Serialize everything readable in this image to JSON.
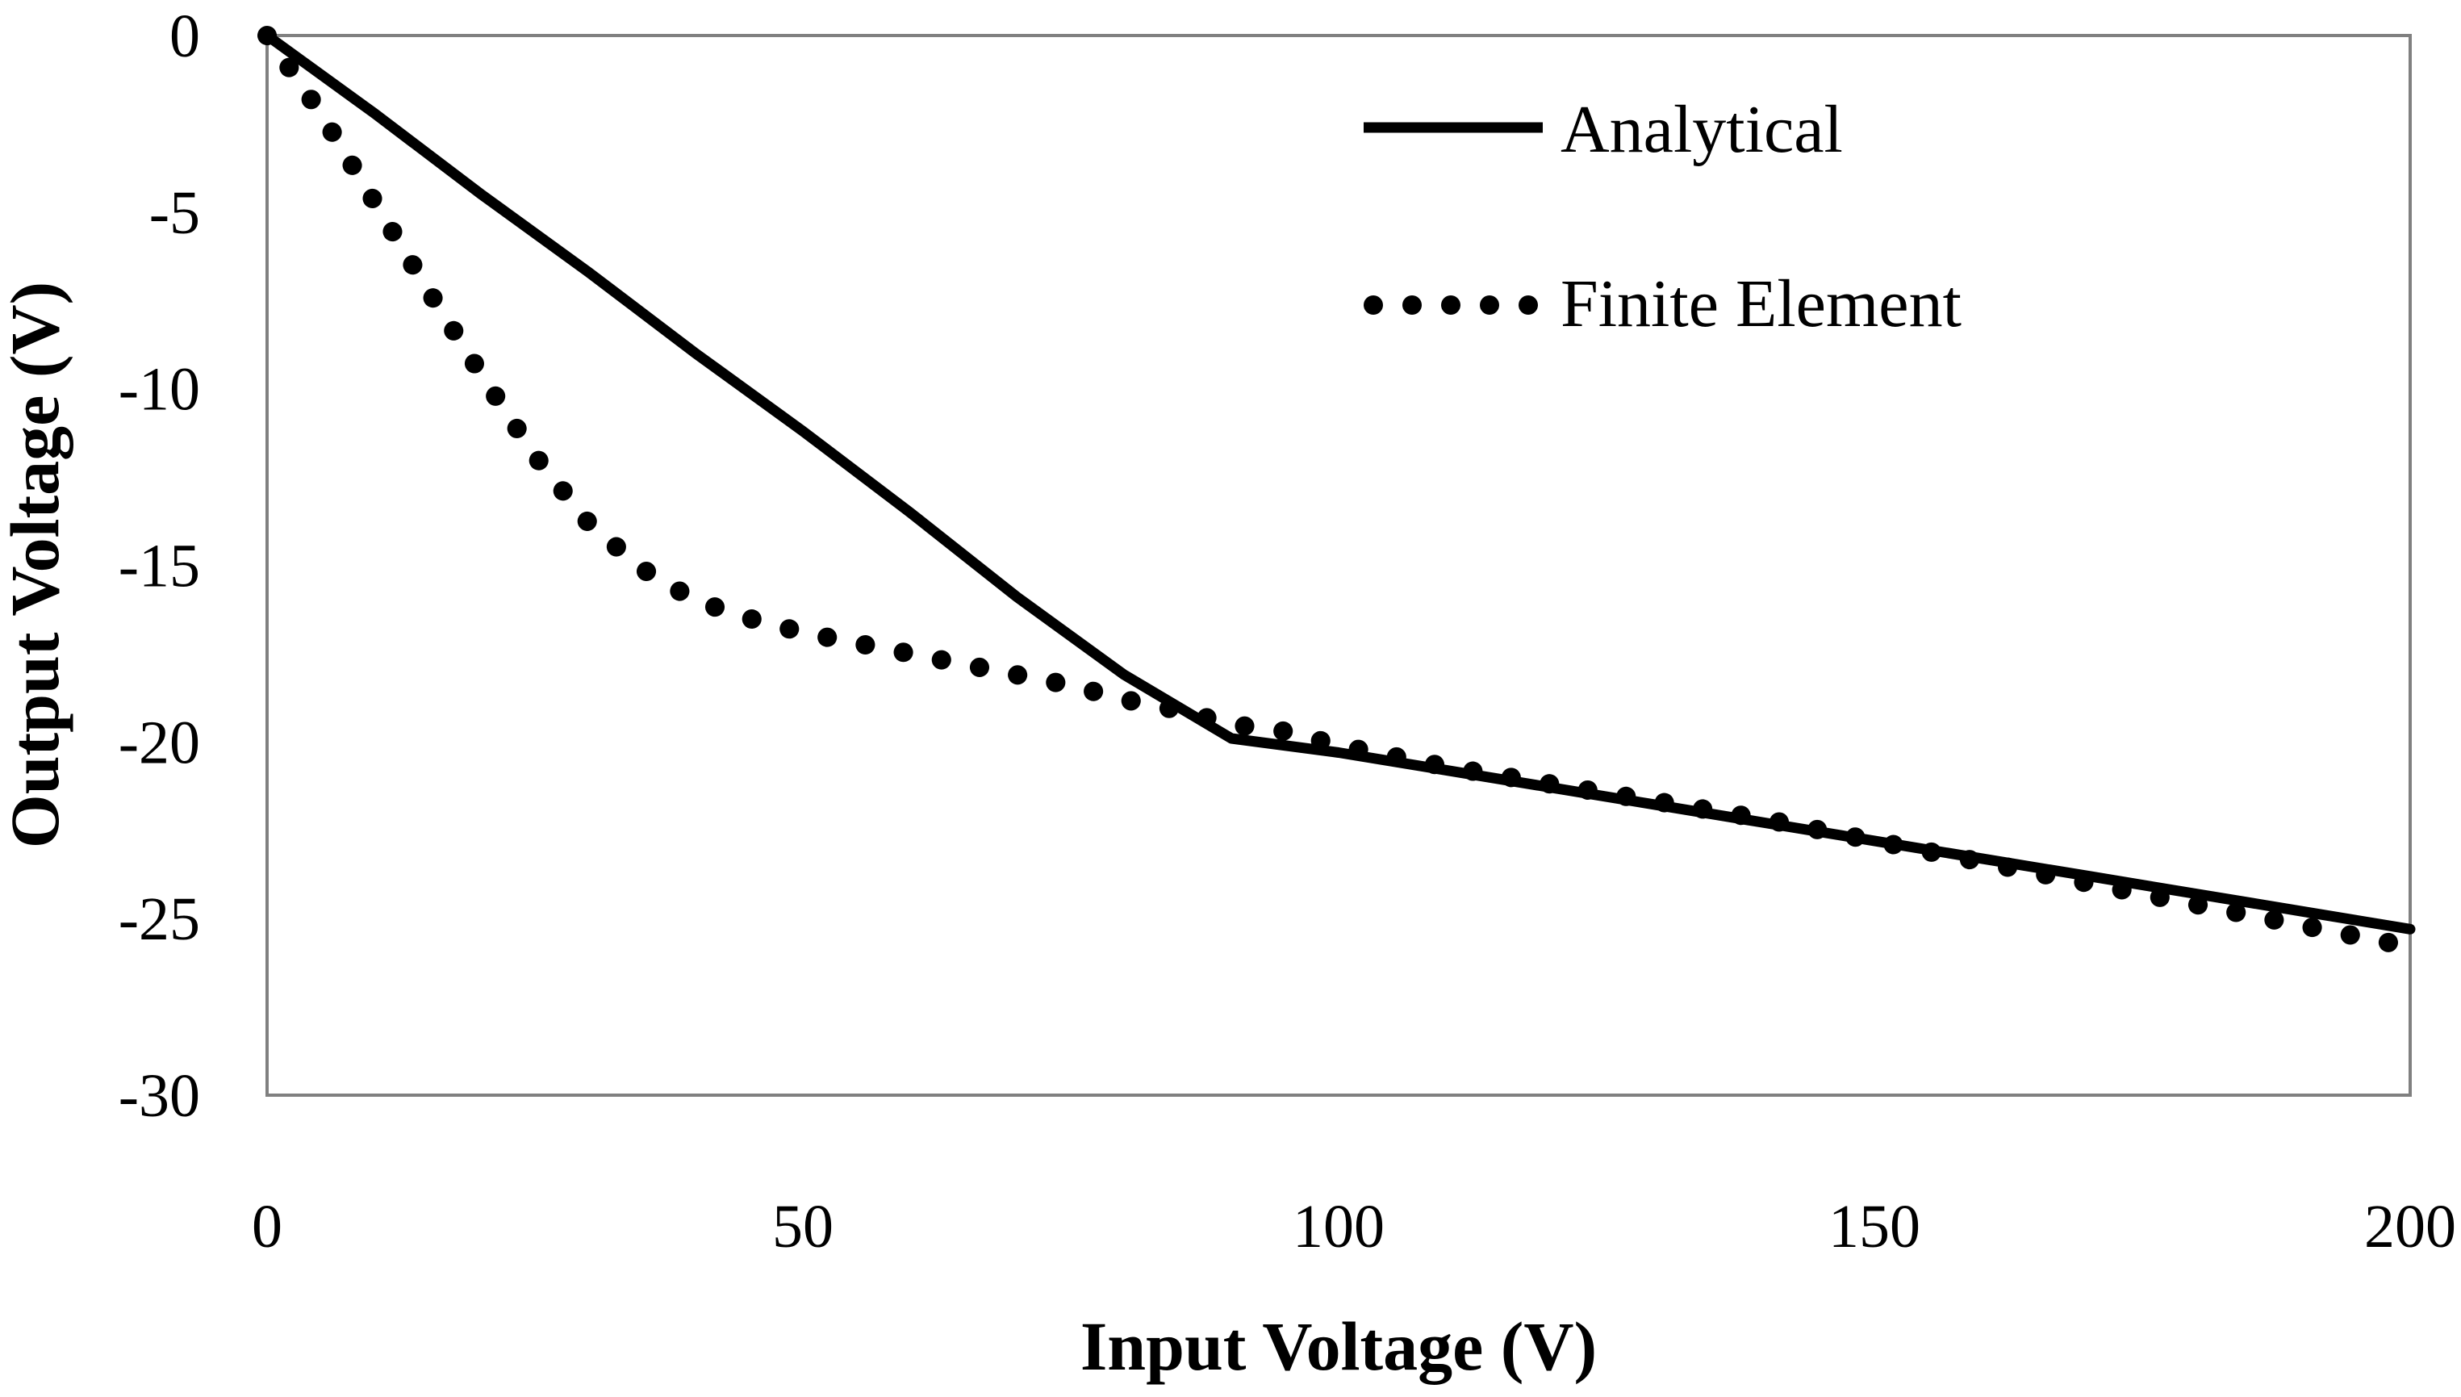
{
  "chart_data": {
    "type": "line",
    "title": "",
    "xlabel": "Input Voltage (V)",
    "ylabel": "Output Voltage (V)",
    "xlim": [
      0,
      200
    ],
    "ylim": [
      -30,
      0
    ],
    "x_ticks": [
      0,
      50,
      100,
      150,
      200
    ],
    "x_tick_labels": [
      "0",
      "50",
      "100",
      "150",
      "200"
    ],
    "y_ticks": [
      0,
      -5,
      -10,
      -15,
      -20,
      -25,
      -30
    ],
    "y_tick_labels": [
      "0",
      "-5",
      "-10",
      "-15",
      "-20",
      "-25",
      "-30"
    ],
    "grid": false,
    "legend_position": "top-right",
    "series": [
      {
        "name": "Analytical",
        "style": "solid",
        "color": "#000000",
        "x": [
          0,
          10,
          20,
          30,
          40,
          50,
          60,
          70,
          80,
          90,
          100,
          110,
          120,
          130,
          140,
          150,
          160,
          170,
          180,
          190,
          200
        ],
        "y": [
          0,
          -2.2,
          -4.5,
          -6.7,
          -9.0,
          -11.2,
          -13.5,
          -15.9,
          -18.1,
          -19.9,
          -20.3,
          -20.8,
          -21.3,
          -21.8,
          -22.3,
          -22.8,
          -23.3,
          -23.8,
          -24.3,
          -24.8,
          -25.3
        ]
      },
      {
        "name": "Finite Element",
        "style": "dotted",
        "color": "#000000",
        "x": [
          0,
          5,
          10,
          15,
          20,
          25,
          30,
          35,
          40,
          45,
          50,
          55,
          60,
          65,
          70,
          75,
          80,
          85,
          90,
          95,
          100,
          110,
          120,
          130,
          140,
          150,
          160,
          170,
          180,
          190,
          200
        ],
        "y": [
          0,
          -2.2,
          -4.7,
          -7.2,
          -9.6,
          -11.9,
          -13.8,
          -15.1,
          -16.0,
          -16.5,
          -16.9,
          -17.2,
          -17.5,
          -17.8,
          -18.1,
          -18.4,
          -18.8,
          -19.1,
          -19.5,
          -19.7,
          -20.1,
          -20.7,
          -21.2,
          -21.7,
          -22.2,
          -22.8,
          -23.4,
          -24.0,
          -24.6,
          -25.2,
          -25.8
        ]
      }
    ]
  }
}
